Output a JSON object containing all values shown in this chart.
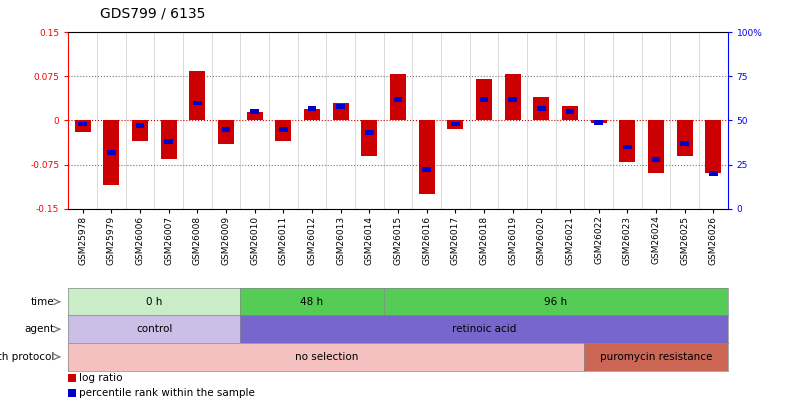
{
  "title": "GDS799 / 6135",
  "samples": [
    "GSM25978",
    "GSM25979",
    "GSM26006",
    "GSM26007",
    "GSM26008",
    "GSM26009",
    "GSM26010",
    "GSM26011",
    "GSM26012",
    "GSM26013",
    "GSM26014",
    "GSM26015",
    "GSM26016",
    "GSM26017",
    "GSM26018",
    "GSM26019",
    "GSM26020",
    "GSM26021",
    "GSM26022",
    "GSM26023",
    "GSM26024",
    "GSM26025",
    "GSM26026"
  ],
  "log_ratio": [
    -0.02,
    -0.11,
    -0.035,
    -0.065,
    0.085,
    -0.04,
    0.015,
    -0.035,
    0.02,
    0.03,
    -0.06,
    0.08,
    -0.125,
    -0.015,
    0.07,
    0.08,
    0.04,
    0.025,
    -0.005,
    -0.07,
    -0.09,
    -0.06,
    -0.09
  ],
  "percentile_rank": [
    48,
    32,
    47,
    38,
    60,
    45,
    55,
    45,
    57,
    58,
    43,
    62,
    22,
    48,
    62,
    62,
    57,
    55,
    49,
    35,
    28,
    37,
    20
  ],
  "ylim": [
    -0.15,
    0.15
  ],
  "y2lim": [
    0,
    100
  ],
  "yticks": [
    -0.15,
    -0.075,
    0,
    0.075,
    0.15
  ],
  "y2ticks": [
    0,
    25,
    50,
    75,
    100
  ],
  "bar_color": "#cc0000",
  "dot_color": "#0000cc",
  "zero_line_color": "#cc0000",
  "dotted_line_color": "#777777",
  "bg_color": "#ffffff",
  "title_fontsize": 10,
  "tick_fontsize": 6.5,
  "annotation_fontsize": 7.5,
  "time_groups": [
    {
      "label": "0 h",
      "start": 0,
      "end": 6,
      "color": "#c8edc8"
    },
    {
      "label": "48 h",
      "start": 6,
      "end": 11,
      "color": "#55cc55"
    },
    {
      "label": "96 h",
      "start": 11,
      "end": 23,
      "color": "#55cc55"
    }
  ],
  "agent_groups": [
    {
      "label": "control",
      "start": 0,
      "end": 6,
      "color": "#cbbfe8"
    },
    {
      "label": "retinoic acid",
      "start": 6,
      "end": 23,
      "color": "#7766cc"
    }
  ],
  "growth_groups": [
    {
      "label": "no selection",
      "start": 0,
      "end": 18,
      "color": "#f4c0c0"
    },
    {
      "label": "puromycin resistance",
      "start": 18,
      "end": 23,
      "color": "#cc6655"
    }
  ]
}
